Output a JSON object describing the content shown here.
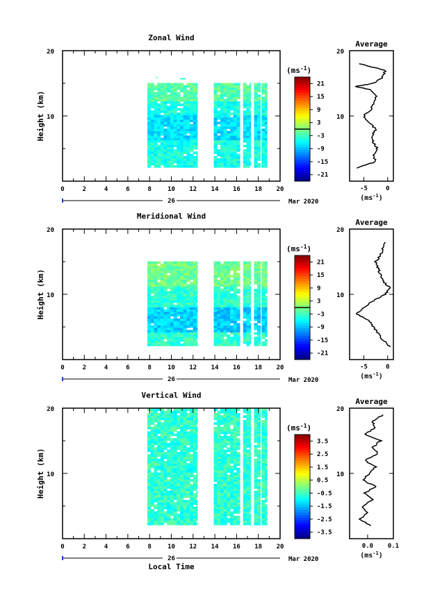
{
  "chart_data": [
    {
      "type": "heatmap",
      "title": "Zonal Wind",
      "ylabel": "Height (km)",
      "xlim": [
        0,
        20
      ],
      "ylim": [
        2,
        20
      ],
      "x_ticks": [
        "0",
        "2",
        "4",
        "6",
        "8",
        "10",
        "12",
        "14",
        "16",
        "18",
        "20"
      ],
      "y_ticks": [
        "10",
        "20"
      ],
      "date_day": "26",
      "date_month": "Mar 2020",
      "colorbar": {
        "unit": "(ms",
        "unit_exp": "-1",
        "ticks": [
          "21",
          "15",
          "9",
          "3",
          "-3",
          "-9",
          "-15",
          "-21"
        ],
        "zero_at": 3,
        "range": [
          -24,
          24
        ]
      },
      "data_columns": [
        [
          7.8,
          12.4
        ],
        [
          13.9,
          16.3
        ],
        [
          16.6,
          17.3
        ],
        [
          17.6,
          18.2
        ],
        [
          18.3,
          18.8
        ]
      ],
      "data_height_range": [
        2.1,
        14.9
      ],
      "profile": {
        "title": "Average",
        "xlabel": "(ms",
        "xlabel_exp": "-1",
        "x_ticks": [
          "-5",
          "0"
        ],
        "y_ticks": [
          "10",
          "20"
        ],
        "xlim": [
          -8,
          1.2
        ],
        "heights": [
          2,
          3,
          4,
          5,
          6,
          7,
          8,
          9,
          10,
          11,
          12,
          13,
          14,
          14.5,
          15,
          16,
          17,
          18
        ],
        "values": [
          -6.5,
          -2.5,
          -3.0,
          -2.2,
          -3.0,
          -3.2,
          -2.5,
          -4.0,
          -5.0,
          -3.5,
          -3.0,
          -2.5,
          -3.5,
          -6.8,
          -3.0,
          -1.0,
          -0.5,
          -6.0
        ]
      }
    },
    {
      "type": "heatmap",
      "title": "Meridional Wind",
      "ylabel": "Height (km)",
      "xlim": [
        0,
        20
      ],
      "ylim": [
        2,
        20
      ],
      "x_ticks": [
        "0",
        "2",
        "4",
        "6",
        "8",
        "10",
        "12",
        "14",
        "16",
        "18",
        "20"
      ],
      "y_ticks": [
        "10",
        "20"
      ],
      "date_day": "26",
      "date_month": "Mar 2020",
      "colorbar": {
        "unit": "(ms",
        "unit_exp": "-1",
        "ticks": [
          "21",
          "15",
          "9",
          "3",
          "-3",
          "-9",
          "-15",
          "-21"
        ],
        "zero_at": 3,
        "range": [
          -24,
          24
        ]
      },
      "data_columns": [
        [
          7.8,
          12.4
        ],
        [
          13.9,
          16.3
        ],
        [
          16.6,
          17.3
        ],
        [
          17.6,
          18.2
        ],
        [
          18.3,
          18.8
        ]
      ],
      "data_height_range": [
        2.1,
        14.9
      ],
      "profile": {
        "title": "Average",
        "xlabel": "(ms",
        "xlabel_exp": "-1",
        "x_ticks": [
          "-5",
          "0"
        ],
        "y_ticks": [
          "10",
          "20"
        ],
        "xlim": [
          -8,
          1.2
        ],
        "heights": [
          2,
          3,
          4,
          5,
          6,
          7,
          8,
          9,
          10,
          11,
          12,
          13,
          14,
          15,
          16,
          17,
          18
        ],
        "values": [
          0.5,
          -1.0,
          -2.0,
          -3.0,
          -4.0,
          -6.5,
          -5.0,
          -3.0,
          -0.5,
          0.5,
          -1.0,
          -1.5,
          -2.0,
          -2.5,
          -1.5,
          -1.0,
          -0.5
        ]
      }
    },
    {
      "type": "heatmap",
      "title": "Vertical Wind",
      "ylabel": "Height (km)",
      "xlabel": "Local Time",
      "xlim": [
        0,
        20
      ],
      "ylim": [
        2,
        20
      ],
      "x_ticks": [
        "0",
        "2",
        "4",
        "6",
        "8",
        "10",
        "12",
        "14",
        "16",
        "18",
        "20"
      ],
      "y_ticks": [
        "10",
        "20"
      ],
      "date_day": "26",
      "date_month": "Mar 2020",
      "colorbar": {
        "unit": "(ms",
        "unit_exp": "-1",
        "ticks": [
          "3.5",
          "2.5",
          "1.5",
          "0.5",
          "-0.5",
          "-1.5",
          "-2.5",
          "-3.5"
        ],
        "range": [
          -4,
          4
        ]
      },
      "data_columns": [
        [
          7.8,
          12.4
        ],
        [
          13.9,
          16.3
        ],
        [
          16.6,
          17.3
        ],
        [
          17.6,
          18.2
        ],
        [
          18.3,
          18.8
        ]
      ],
      "data_height_range": [
        2.1,
        19.9
      ],
      "profile": {
        "title": "Average",
        "xlabel": "(ms",
        "xlabel_exp": "-1",
        "x_ticks": [
          "0.0",
          "0.1"
        ],
        "y_ticks": [
          "10",
          "20"
        ],
        "xlim": [
          -0.07,
          0.1
        ],
        "heights": [
          2,
          3,
          4,
          5,
          6,
          7,
          8,
          9,
          10,
          11,
          12,
          13,
          14,
          15,
          16,
          17,
          18,
          19
        ],
        "values": [
          0.01,
          -0.03,
          0.0,
          -0.02,
          0.02,
          -0.01,
          0.03,
          -0.02,
          0.01,
          0.03,
          -0.01,
          0.04,
          0.02,
          0.05,
          -0.01,
          0.03,
          0.02,
          0.06
        ]
      }
    }
  ]
}
